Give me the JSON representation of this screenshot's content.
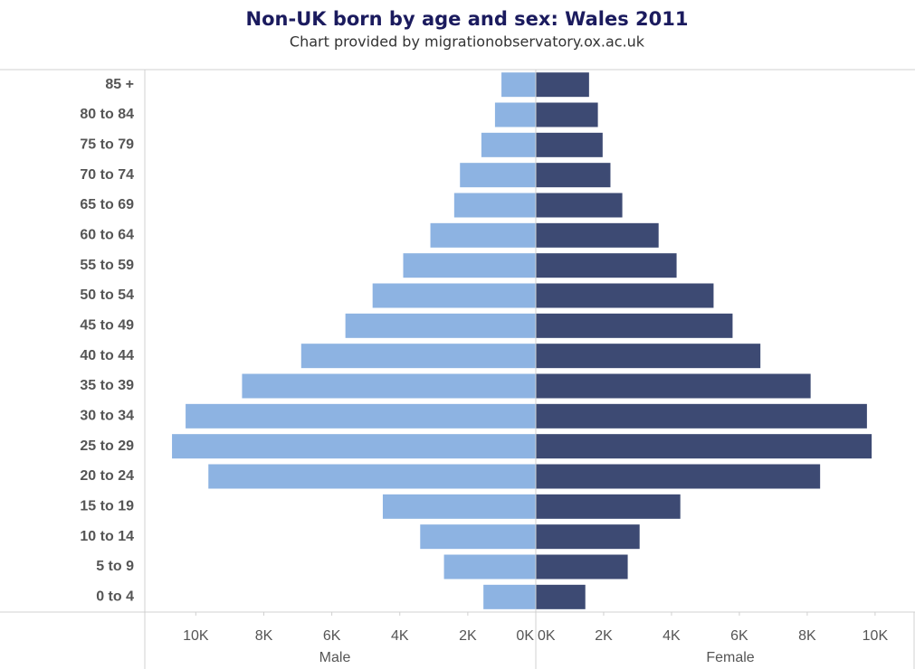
{
  "chart_data": {
    "type": "bar",
    "orientation": "horizontal",
    "title": "Non-UK born by age and sex: Wales 2011",
    "subtitle": "Chart provided by migrationobservatory.ox.ac.uk",
    "categories": [
      "85 +",
      "80 to 84",
      "75 to 79",
      "70 to 74",
      "65 to 69",
      "60 to 64",
      "55 to 59",
      "50 to 54",
      "45 to 49",
      "40 to 44",
      "35 to 39",
      "30 to 34",
      "25 to 29",
      "20 to 24",
      "15 to 19",
      "10 to 14",
      "5 to 9",
      "0 to 4"
    ],
    "series": [
      {
        "name": "Male",
        "color": "#8db3e2",
        "axis": "x",
        "values": [
          1010,
          1200,
          1600,
          2230,
          2400,
          3100,
          3900,
          4800,
          5600,
          6900,
          8640,
          10300,
          10700,
          9630,
          4500,
          3400,
          2700,
          1540
        ]
      },
      {
        "name": "Female",
        "color": "#3d4a73",
        "axis": "x2",
        "values": [
          1570,
          1830,
          1970,
          2200,
          2550,
          3620,
          4150,
          5240,
          5800,
          6620,
          8100,
          9760,
          9900,
          8380,
          4260,
          3060,
          2710,
          1460
        ]
      }
    ],
    "xlim": [
      11500,
      0
    ],
    "xticks": [
      {
        "value": 10000,
        "label": "10K"
      },
      {
        "value": 8000,
        "label": "8K"
      },
      {
        "value": 6000,
        "label": "6K"
      },
      {
        "value": 4000,
        "label": "4K"
      },
      {
        "value": 2000,
        "label": "2K"
      },
      {
        "value": 0,
        "label": "0K"
      }
    ],
    "x2lim": [
      0,
      11150
    ],
    "x2ticks": [
      {
        "value": 0,
        "label": "0K"
      },
      {
        "value": 2000,
        "label": "2K"
      },
      {
        "value": 4000,
        "label": "4K"
      },
      {
        "value": 6000,
        "label": "6K"
      },
      {
        "value": 8000,
        "label": "8K"
      },
      {
        "value": 10000,
        "label": "10K"
      }
    ]
  }
}
